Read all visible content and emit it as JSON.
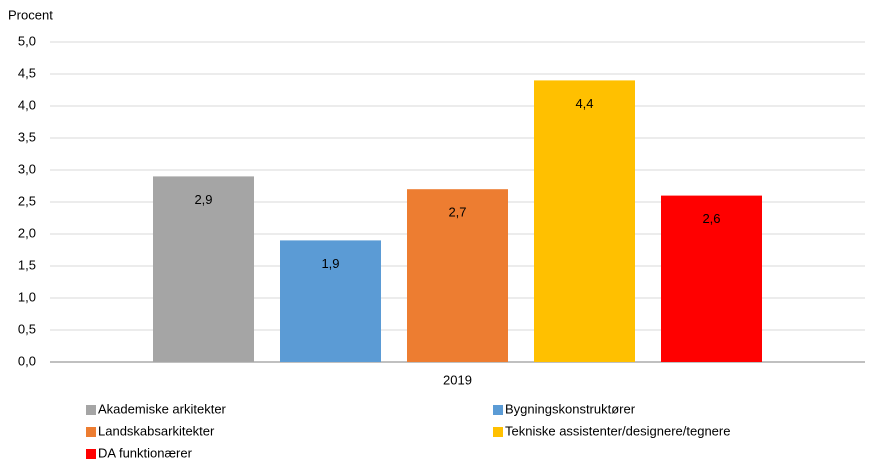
{
  "chart_data": {
    "type": "bar",
    "y_label": "Procent",
    "categories": [
      "2019"
    ],
    "series": [
      {
        "name": "Akademiske arkitekter",
        "color": "#a5a5a5",
        "values": [
          2.9
        ],
        "value_labels": [
          "2,9"
        ]
      },
      {
        "name": "Bygningskonstruktører",
        "color": "#5b9bd5",
        "values": [
          1.9
        ],
        "value_labels": [
          "1,9"
        ]
      },
      {
        "name": "Landskabsarkitekter",
        "color": "#ed7d31",
        "values": [
          2.7
        ],
        "value_labels": [
          "2,7"
        ]
      },
      {
        "name": "Tekniske assistenter/designere/tegnere",
        "color": "#ffc000",
        "values": [
          4.4
        ],
        "value_labels": [
          "4,4"
        ]
      },
      {
        "name": "DA funktionærer",
        "color": "#ff0000",
        "values": [
          2.6
        ],
        "value_labels": [
          "2,6"
        ]
      }
    ],
    "ylim": [
      0,
      5
    ],
    "yticks": [
      {
        "value": 0,
        "label": "0,0"
      },
      {
        "value": 0.5,
        "label": "0,5"
      },
      {
        "value": 1,
        "label": "1,0"
      },
      {
        "value": 1.5,
        "label": "1,5"
      },
      {
        "value": 2,
        "label": "2,0"
      },
      {
        "value": 2.5,
        "label": "2,5"
      },
      {
        "value": 3,
        "label": "3,0"
      },
      {
        "value": 3.5,
        "label": "3,5"
      },
      {
        "value": 4,
        "label": "4,0"
      },
      {
        "value": 4.5,
        "label": "4,5"
      },
      {
        "value": 5,
        "label": "5,0"
      }
    ],
    "grid": true
  }
}
